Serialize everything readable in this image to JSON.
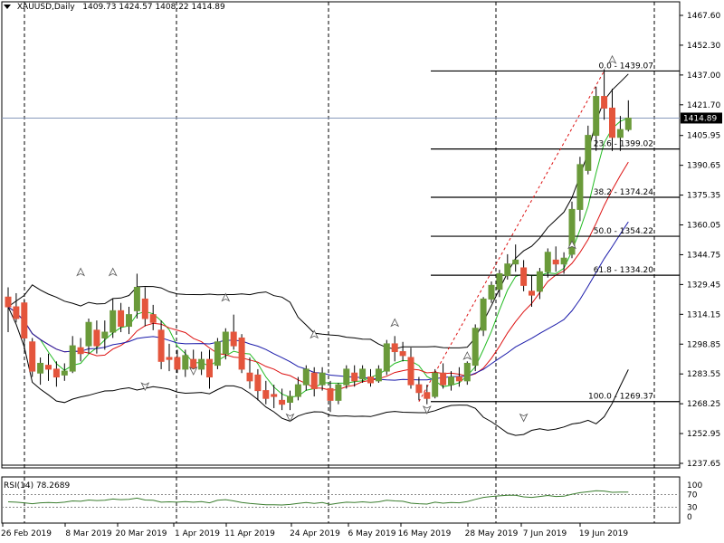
{
  "header": {
    "symbol": "XAUUSD,Daily",
    "ohlc": "1409.73 1424.57 1408.22 1414.89"
  },
  "colors": {
    "bull": "#6a9a3a",
    "bear": "#e4553c",
    "bb": "#000000",
    "ma_fast": "#22bb22",
    "ma_mid": "#dd1111",
    "ma_slow": "#1a1aaa",
    "rsi": "#3a7d2e",
    "grid_dash": "#000000",
    "hline": "#000000"
  },
  "chart_data": [
    {
      "type": "candlestick",
      "title": "XAUUSD,Daily",
      "current_price": "1414.89",
      "y_ticks": [
        "1467.60",
        "1452.30",
        "1437.00",
        "1421.70",
        "1405.95",
        "1390.65",
        "1375.35",
        "1360.05",
        "1344.75",
        "1329.45",
        "1314.15",
        "1298.85",
        "1283.55",
        "1268.25",
        "1252.95",
        "1237.65"
      ],
      "ylim": [
        1237.65,
        1467.6
      ],
      "x_ticks": [
        "26 Feb 2019",
        "8 Mar 2019",
        "20 Mar 2019",
        "1 Apr 2019",
        "11 Apr 2019",
        "24 Apr 2019",
        "6 May 2019",
        "16 May 2019",
        "28 May 2019",
        "7 Jun 2019",
        "19 Jun 2019"
      ],
      "fibonacci": [
        {
          "label": "0.0 - 1439.07",
          "value": 1439.07
        },
        {
          "label": "23.6 - 1399.02",
          "value": 1399.02
        },
        {
          "label": "38.2 - 1374.24",
          "value": 1374.24
        },
        {
          "label": "50.0 - 1354.22",
          "value": 1354.22
        },
        {
          "label": "61.8 - 1334.20",
          "value": 1334.2
        },
        {
          "label": "100.0 - 1269.37",
          "value": 1269.37
        }
      ],
      "candles": [
        [
          1323,
          1328,
          1305,
          1318
        ],
        [
          1318,
          1325,
          1310,
          1312
        ],
        [
          1320,
          1322,
          1296,
          1302
        ],
        [
          1300,
          1302,
          1282,
          1285
        ],
        [
          1284,
          1292,
          1278,
          1289
        ],
        [
          1288,
          1294,
          1280,
          1286
        ],
        [
          1286,
          1290,
          1277,
          1282
        ],
        [
          1283,
          1289,
          1280,
          1285
        ],
        [
          1285,
          1303,
          1284,
          1298
        ],
        [
          1297,
          1302,
          1290,
          1294
        ],
        [
          1298,
          1312,
          1294,
          1310
        ],
        [
          1306,
          1311,
          1294,
          1298
        ],
        [
          1302,
          1311,
          1296,
          1305
        ],
        [
          1305,
          1322,
          1302,
          1316
        ],
        [
          1316,
          1320,
          1305,
          1308
        ],
        [
          1308,
          1318,
          1304,
          1314
        ],
        [
          1316,
          1335,
          1312,
          1328
        ],
        [
          1322,
          1328,
          1308,
          1312
        ],
        [
          1314,
          1319,
          1306,
          1310
        ],
        [
          1306,
          1311,
          1286,
          1290
        ],
        [
          1292,
          1299,
          1285,
          1291
        ],
        [
          1292,
          1296,
          1284,
          1286
        ],
        [
          1286,
          1296,
          1282,
          1293
        ],
        [
          1291,
          1296,
          1284,
          1286
        ],
        [
          1286,
          1295,
          1283,
          1291
        ],
        [
          1291,
          1296,
          1276,
          1282
        ],
        [
          1288,
          1302,
          1286,
          1300
        ],
        [
          1294,
          1307,
          1291,
          1305
        ],
        [
          1305,
          1314,
          1296,
          1298
        ],
        [
          1302,
          1304,
          1284,
          1286
        ],
        [
          1284,
          1292,
          1276,
          1280
        ],
        [
          1283,
          1286,
          1270,
          1275
        ],
        [
          1275,
          1280,
          1268,
          1271
        ],
        [
          1273,
          1278,
          1266,
          1272
        ],
        [
          1270,
          1276,
          1265,
          1268
        ],
        [
          1269,
          1275,
          1265,
          1272
        ],
        [
          1272,
          1282,
          1270,
          1278
        ],
        [
          1278,
          1288,
          1275,
          1286
        ],
        [
          1284,
          1287,
          1272,
          1276
        ],
        [
          1278,
          1287,
          1275,
          1284
        ],
        [
          1276,
          1280,
          1264,
          1270
        ],
        [
          1270,
          1279,
          1268,
          1278
        ],
        [
          1278,
          1288,
          1276,
          1286
        ],
        [
          1284,
          1288,
          1277,
          1280
        ],
        [
          1281,
          1288,
          1279,
          1286
        ],
        [
          1282,
          1286,
          1277,
          1279
        ],
        [
          1280,
          1288,
          1279,
          1286
        ],
        [
          1285,
          1301,
          1283,
          1299
        ],
        [
          1299,
          1303,
          1290,
          1295
        ],
        [
          1295,
          1300,
          1290,
          1293
        ],
        [
          1292,
          1297,
          1276,
          1278
        ],
        [
          1278,
          1282,
          1270,
          1274
        ],
        [
          1274,
          1278,
          1268,
          1271
        ],
        [
          1272,
          1286,
          1271,
          1284
        ],
        [
          1284,
          1289,
          1276,
          1278
        ],
        [
          1278,
          1285,
          1275,
          1282
        ],
        [
          1282,
          1287,
          1277,
          1280
        ],
        [
          1280,
          1290,
          1278,
          1289
        ],
        [
          1288,
          1309,
          1285,
          1307
        ],
        [
          1306,
          1323,
          1303,
          1322
        ],
        [
          1322,
          1331,
          1320,
          1329
        ],
        [
          1327,
          1337,
          1323,
          1335
        ],
        [
          1334,
          1345,
          1332,
          1340
        ],
        [
          1340,
          1350,
          1336,
          1342
        ],
        [
          1338,
          1342,
          1326,
          1329
        ],
        [
          1326,
          1334,
          1318,
          1324
        ],
        [
          1326,
          1338,
          1322,
          1336
        ],
        [
          1336,
          1348,
          1333,
          1346
        ],
        [
          1342,
          1349,
          1336,
          1340
        ],
        [
          1340,
          1346,
          1335,
          1343
        ],
        [
          1345,
          1372,
          1343,
          1368
        ],
        [
          1368,
          1395,
          1362,
          1391
        ],
        [
          1388,
          1411,
          1386,
          1406
        ],
        [
          1406,
          1431,
          1398,
          1426
        ],
        [
          1426,
          1440,
          1414,
          1420
        ],
        [
          1420,
          1430,
          1398,
          1405
        ],
        [
          1405,
          1416,
          1398,
          1409
        ],
        [
          1409,
          1424,
          1408,
          1414.89
        ]
      ],
      "rsi": {
        "label": "RSI(14) 78.2689",
        "levels": [
          "100",
          "70",
          "30",
          "0"
        ],
        "values": [
          47,
          46,
          44,
          41,
          44,
          45,
          44,
          46,
          50,
          49,
          53,
          51,
          52,
          56,
          54,
          55,
          59,
          53,
          52,
          46,
          47,
          46,
          48,
          46,
          48,
          44,
          52,
          54,
          50,
          45,
          42,
          40,
          38,
          38,
          37,
          39,
          42,
          45,
          42,
          45,
          39,
          43,
          46,
          45,
          47,
          45,
          47,
          52,
          50,
          49,
          43,
          41,
          40,
          46,
          43,
          45,
          44,
          48,
          55,
          61,
          64,
          66,
          68,
          68,
          63,
          61,
          64,
          67,
          64,
          65,
          71,
          76,
          79,
          82,
          81,
          77,
          78,
          78
        ]
      }
    }
  ]
}
